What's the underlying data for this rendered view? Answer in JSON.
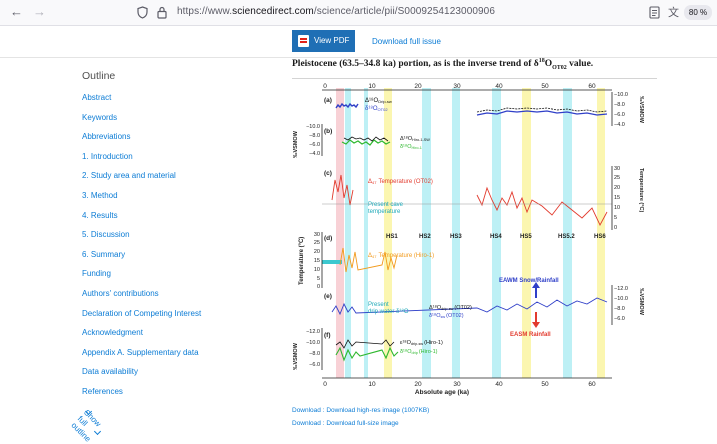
{
  "browser": {
    "url_prefix": "https://www.",
    "url_domain": "sciencedirect.com",
    "url_path": "/science/article/pii/S0009254123000906",
    "zoom": "80 %"
  },
  "toolbar": {
    "view_pdf": "View PDF",
    "download_issue": "Download full issue"
  },
  "outline": {
    "title": "Outline",
    "items": [
      "Abstract",
      "Keywords",
      "Abbreviations",
      "1. Introduction",
      "2. Study area and material",
      "3. Method",
      "4. Results",
      "5. Discussion",
      "6. Summary",
      "Funding",
      "Authors' contributions",
      "Declaration of Competing Interest",
      "Acknowledgment",
      "Appendix A. Supplementary data",
      "Data availability",
      "References"
    ],
    "show_full": "Show full outline"
  },
  "article": {
    "caption_pre": "Pleistocene (63.5–34.8 ka) portion, as is the inverse trend of δ",
    "caption_sup": "18",
    "caption_mid": "O",
    "caption_sub": "OT02",
    "caption_post": " value."
  },
  "figure": {
    "top_ticks": [
      "0",
      "10",
      "20",
      "30",
      "40",
      "50",
      "60"
    ],
    "bottom_ticks": [
      "0",
      "10",
      "20",
      "30",
      "40",
      "50",
      "60"
    ],
    "x_label": "Absolute age (ka)",
    "panels": [
      "(a)",
      "(b)",
      "(c)",
      "(d)",
      "(e)",
      "(f)"
    ],
    "legend_a1": "Δ¹⁸O",
    "legend_a1_sub": "Drip-sw",
    "legend_a2": "δ¹⁸O",
    "legend_a2_sub": "OT02",
    "legend_b1": "Δ¹⁸O",
    "legend_b1_sub": "Hiro-1-SW",
    "legend_b2": "δ¹⁸O",
    "legend_b2_sub": "Hiro-1",
    "legend_c": "Temperature (OT02)",
    "legend_c_pre": "Δ",
    "legend_c_sub": "47",
    "present_cave_1": "Present cave",
    "present_cave_2": "temperature",
    "legend_d": "Temperature (Hiro-1)",
    "legend_d_pre": "Δ",
    "legend_d_sub": "47",
    "hs_labels": [
      "HS1",
      "HS2",
      "HS3",
      "HS4",
      "HS5",
      "HS5.2",
      "HS6"
    ],
    "present_drip_1": "Present",
    "present_drip_2": "drip water δ¹⁸O",
    "legend_e1": "Δ¹⁸O",
    "legend_e1_sub": "drip-sw",
    "legend_e1_tail": "(OT02)",
    "legend_e2": "δ¹⁸O",
    "legend_e2_sub": "sw",
    "legend_e2_tail": "(OT02)",
    "eawm": "EAWM Snow/Rainfall",
    "easm": "EASM Rainfall",
    "legend_f1": "ε¹⁸O",
    "legend_f1_sub": "drip-sw",
    "legend_f1_tail": "(Hiro-1)",
    "legend_f2": "δ¹⁸O",
    "legend_f2_sub": "drip",
    "legend_f2_tail": "(Hiro-1)",
    "yl_left_b": "‰VSMOW",
    "yl_left_d": "Temperature (°C)",
    "yl_left_f": "‰VSMOW",
    "yl_right_a": "‰VSMOW",
    "yl_right_c": "Temperature (°C)",
    "yl_right_e": "‰VSMOW",
    "ticks_right_a": [
      "−10.0",
      "−8.0",
      "−6.0",
      "−4.0"
    ],
    "ticks_left_b": [
      "−10.0",
      "−8.0",
      "−6.0",
      "−4.0"
    ],
    "ticks_right_c": [
      "30",
      "25",
      "20",
      "15",
      "10",
      "5",
      "0"
    ],
    "ticks_left_d": [
      "30",
      "25",
      "20",
      "15",
      "10",
      "5",
      "0"
    ],
    "ticks_right_e": [
      "−12.0",
      "−10.0",
      "−8.0",
      "−6.0"
    ],
    "ticks_left_f": [
      "−12.0",
      "−10.0",
      "−8.0",
      "−6.0"
    ]
  },
  "downloads": {
    "high_res": "Download : Download high-res image (1007KB)",
    "full_size": "Download : Download full-size image"
  },
  "colors": {
    "link": "#0c7cd5",
    "pdf_button": "#1f6fb5",
    "cyan_band": "#bdf0f5",
    "yellow_band": "#fbf6b0",
    "pink_band": "#f7c9cf"
  }
}
